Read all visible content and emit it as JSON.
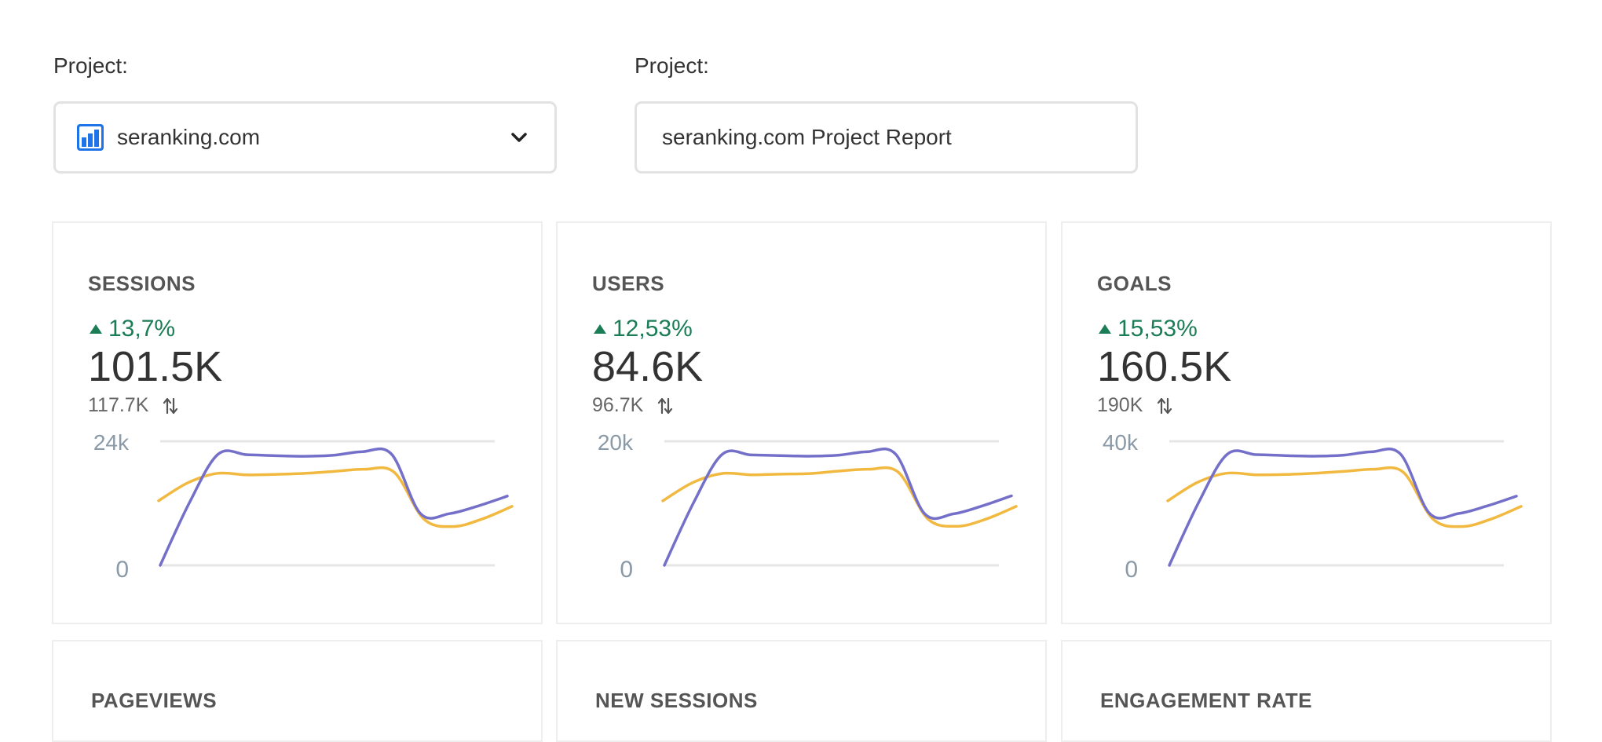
{
  "project_selector": {
    "label": "Project:",
    "selected": "seranking.com",
    "icon": "bar-chart-icon",
    "chevron": "chevron-down-icon"
  },
  "report_title": {
    "label": "Project:",
    "value": "seranking.com Project Report"
  },
  "colors": {
    "current_series": "#7470c9",
    "previous_series": "#f2b941",
    "positive_delta": "#1a7d55",
    "grid": "#e6e6e6"
  },
  "cards": [
    {
      "title": "SESSIONS",
      "delta": "13,7%",
      "value": "101.5K",
      "compare": "117.7K",
      "compare_icon": "swap-vertical-icon",
      "y_max_label": "24k",
      "y_min_label": "0"
    },
    {
      "title": "USERS",
      "delta": "12,53%",
      "value": "84.6K",
      "compare": "96.7K",
      "compare_icon": "swap-vertical-icon",
      "y_max_label": "20k",
      "y_min_label": "0"
    },
    {
      "title": "GOALS",
      "delta": "15,53%",
      "value": "160.5K",
      "compare": "190K",
      "compare_icon": "swap-vertical-icon",
      "y_max_label": "40k",
      "y_min_label": "0"
    },
    {
      "title": "PAGEVIEWS"
    },
    {
      "title": "NEW SESSIONS"
    },
    {
      "title": "ENGAGEMENT RATE"
    }
  ],
  "chart_data": [
    {
      "type": "line",
      "title": "SESSIONS",
      "ylim": [
        0,
        24000
      ],
      "x": [
        1,
        2,
        3,
        4,
        5,
        6,
        7,
        8,
        9,
        10,
        11,
        12,
        13
      ],
      "series": [
        {
          "values": [
            0,
            12000,
            21500,
            21400,
            21200,
            21100,
            21300,
            22000,
            21500,
            10000,
            10000,
            11500,
            13400
          ]
        },
        {
          "values": [
            12500,
            16000,
            17800,
            17500,
            17600,
            17800,
            18200,
            18600,
            18000,
            9000,
            7500,
            9000,
            11400
          ]
        }
      ],
      "grid": true
    },
    {
      "type": "line",
      "title": "USERS",
      "ylim": [
        0,
        20000
      ],
      "x": [
        1,
        2,
        3,
        4,
        5,
        6,
        7,
        8,
        9,
        10,
        11,
        12,
        13
      ],
      "series": [
        {
          "values": [
            0,
            10000,
            17900,
            17800,
            17700,
            17600,
            17750,
            18300,
            17900,
            8300,
            8300,
            9600,
            11200
          ]
        },
        {
          "values": [
            10400,
            13300,
            14800,
            14600,
            14700,
            14800,
            15200,
            15500,
            15000,
            7500,
            6300,
            7500,
            9500
          ]
        }
      ],
      "grid": true
    },
    {
      "type": "line",
      "title": "GOALS",
      "ylim": [
        0,
        40000
      ],
      "x": [
        1,
        2,
        3,
        4,
        5,
        6,
        7,
        8,
        9,
        10,
        11,
        12,
        13
      ],
      "series": [
        {
          "values": [
            0,
            20000,
            35800,
            35700,
            35400,
            35200,
            35500,
            36600,
            35800,
            16700,
            16700,
            19200,
            22300
          ]
        },
        {
          "values": [
            20800,
            26700,
            29700,
            29200,
            29300,
            29700,
            30300,
            31000,
            30000,
            15000,
            12500,
            15000,
            19000
          ]
        }
      ],
      "grid": true
    }
  ]
}
